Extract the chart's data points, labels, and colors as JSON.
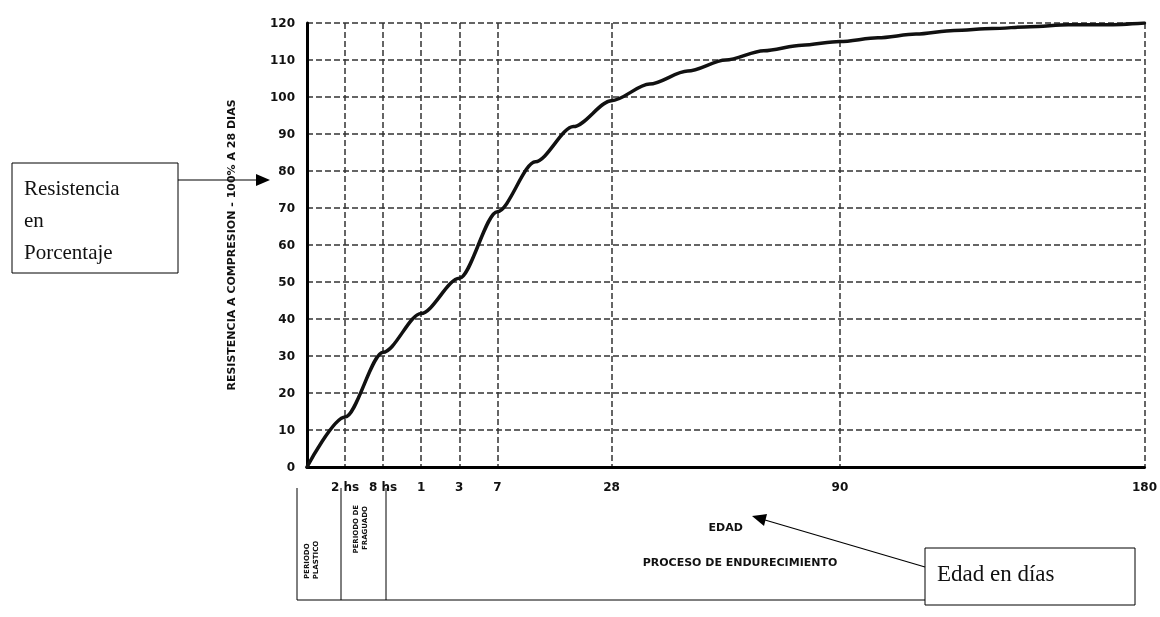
{
  "chart_data": {
    "type": "line",
    "ylabel": "RESISTENCIA A COMPRESION - 100% A 28 DIAS",
    "xlabel": "EDAD",
    "categories": [
      null,
      "2 hs",
      "8 hs",
      "1",
      "3",
      "7",
      null,
      null,
      "28",
      null,
      null,
      null,
      null,
      null,
      "90",
      null,
      null,
      null,
      null,
      null,
      null,
      null,
      "180"
    ],
    "series": [
      {
        "color": "#111111",
        "values": [
          0,
          13.5,
          31,
          41.5,
          51,
          69,
          82.5,
          92,
          99,
          103.5,
          107,
          110,
          112.5,
          114,
          115,
          116,
          117,
          118,
          118.5,
          119,
          119.5,
          119.5,
          120
        ]
      }
    ],
    "ylim": [
      0,
      120
    ],
    "yticks": [
      0,
      10,
      20,
      30,
      40,
      50,
      60,
      70,
      80,
      90,
      100,
      110,
      120
    ],
    "grid": true,
    "marker": "none",
    "line_style": "solid",
    "annotations": [
      "PROCESO DE ENDURECIMIENTO",
      "PERIODO PLASTICO",
      "PERIODO DE FRAGUADO",
      "Resistencia en Porcentaje",
      "Edad en días"
    ]
  }
}
